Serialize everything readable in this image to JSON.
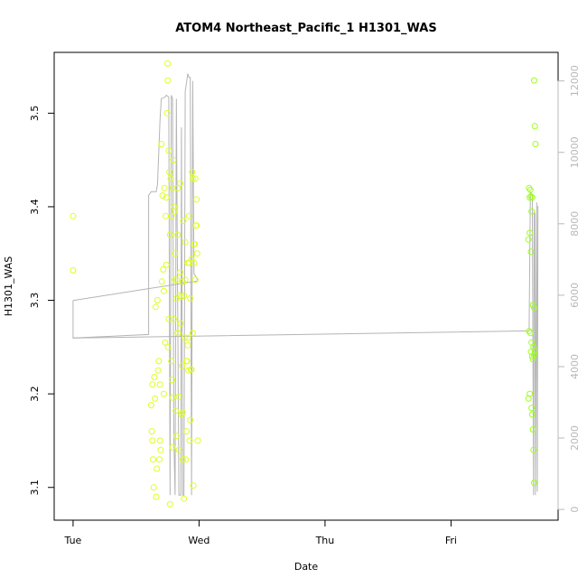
{
  "chart_data": {
    "type": "scatter",
    "title": "ATOM4 Northeast_Pacific_1 H1301_WAS",
    "xlabel": "Date",
    "ylabel": "H1301_WAS",
    "x_ticks": [
      "Tue",
      "Wed",
      "Thu",
      "Fri"
    ],
    "xlim_days": [
      -0.15,
      3.85
    ],
    "ylim": [
      3.065,
      3.565
    ],
    "y_ticks": [
      "3.1",
      "3.2",
      "3.3",
      "3.4",
      "3.5"
    ],
    "y2lim": [
      -300,
      12800
    ],
    "y2_ticks": [
      "0",
      "2000",
      "4000",
      "6000",
      "8000",
      "10000",
      "12000"
    ],
    "grid": false,
    "legend": "none",
    "colors": {
      "point_fill": "#ffffff",
      "point_yellow": "#dfff1f",
      "point_green": "#9cff1f",
      "altitude_line": "#b4b4b4"
    },
    "series": [
      {
        "axis": "left",
        "style": "points",
        "points": [
          [
            0.0,
            3.39
          ],
          [
            0.0,
            3.332
          ],
          [
            0.62,
            3.188
          ],
          [
            0.625,
            3.16
          ],
          [
            0.63,
            3.15
          ],
          [
            0.63,
            3.21
          ],
          [
            0.635,
            3.13
          ],
          [
            0.64,
            3.1
          ],
          [
            0.645,
            3.218
          ],
          [
            0.65,
            3.195
          ],
          [
            0.655,
            3.293
          ],
          [
            0.66,
            3.09
          ],
          [
            0.665,
            3.12
          ],
          [
            0.67,
            3.3
          ],
          [
            0.675,
            3.225
          ],
          [
            0.68,
            3.235
          ],
          [
            0.685,
            3.13
          ],
          [
            0.69,
            3.15
          ],
          [
            0.69,
            3.21
          ],
          [
            0.695,
            3.14
          ],
          [
            0.7,
            3.467
          ],
          [
            0.705,
            3.32
          ],
          [
            0.71,
            3.412
          ],
          [
            0.715,
            3.333
          ],
          [
            0.72,
            3.31
          ],
          [
            0.725,
            3.42
          ],
          [
            0.73,
            3.255
          ],
          [
            0.735,
            3.39
          ],
          [
            0.74,
            3.338
          ],
          [
            0.745,
            3.5
          ],
          [
            0.75,
            3.553
          ],
          [
            0.752,
            3.535
          ],
          [
            0.755,
            3.25
          ],
          [
            0.76,
            3.46
          ],
          [
            0.765,
            3.437
          ],
          [
            0.77,
            3.37
          ],
          [
            0.775,
            3.43
          ],
          [
            0.78,
            3.39
          ],
          [
            0.785,
            3.215
          ],
          [
            0.79,
            3.143
          ],
          [
            0.795,
            3.45
          ],
          [
            0.8,
            3.28
          ],
          [
            0.805,
            3.395
          ],
          [
            0.81,
            3.35
          ],
          [
            0.815,
            3.182
          ],
          [
            0.82,
            3.155
          ],
          [
            0.825,
            3.322
          ],
          [
            0.83,
            3.42
          ],
          [
            0.835,
            3.265
          ],
          [
            0.84,
            3.197
          ],
          [
            0.845,
            3.305
          ],
          [
            0.85,
            3.33
          ],
          [
            0.855,
            3.275
          ],
          [
            0.86,
            3.178
          ],
          [
            0.865,
            3.23
          ],
          [
            0.87,
            3.32
          ],
          [
            0.875,
            3.385
          ],
          [
            0.88,
            3.305
          ],
          [
            0.885,
            3.26
          ],
          [
            0.89,
            3.362
          ],
          [
            0.895,
            3.13
          ],
          [
            0.9,
            3.16
          ],
          [
            0.905,
            3.235
          ],
          [
            0.91,
            3.252
          ],
          [
            0.915,
            3.225
          ],
          [
            0.92,
            3.34
          ],
          [
            0.925,
            3.15
          ],
          [
            0.93,
            3.172
          ],
          [
            0.935,
            3.226
          ],
          [
            0.94,
            3.344
          ],
          [
            0.945,
            3.437
          ],
          [
            0.95,
            3.265
          ],
          [
            0.955,
            3.102
          ],
          [
            0.96,
            3.34
          ],
          [
            0.965,
            3.36
          ],
          [
            0.97,
            3.43
          ],
          [
            0.975,
            3.38
          ],
          [
            0.98,
            3.408
          ],
          [
            0.985,
            3.35
          ],
          [
            0.99,
            3.15
          ],
          [
            0.77,
            3.082
          ],
          [
            0.78,
            3.235
          ],
          [
            0.79,
            3.196
          ],
          [
            0.8,
            3.4
          ],
          [
            0.81,
            3.322
          ],
          [
            0.82,
            3.302
          ],
          [
            0.83,
            3.265
          ],
          [
            0.84,
            3.14
          ],
          [
            0.85,
            3.425
          ],
          [
            0.86,
            3.304
          ],
          [
            0.87,
            3.13
          ],
          [
            0.88,
            3.088
          ],
          [
            0.89,
            3.322
          ],
          [
            0.9,
            3.235
          ],
          [
            0.91,
            3.34
          ],
          [
            0.92,
            3.39
          ],
          [
            0.93,
            3.302
          ],
          [
            0.94,
            3.226
          ],
          [
            0.95,
            3.265
          ],
          [
            0.96,
            3.36
          ],
          [
            0.97,
            3.322
          ],
          [
            0.98,
            3.38
          ],
          [
            0.72,
            3.2
          ],
          [
            0.74,
            3.41
          ],
          [
            0.76,
            3.28
          ],
          [
            0.79,
            3.42
          ],
          [
            0.83,
            3.37
          ],
          [
            0.87,
            3.18
          ],
          [
            0.91,
            3.26
          ],
          [
            0.95,
            3.43
          ]
        ]
      },
      {
        "axis": "left",
        "style": "points",
        "points": [
          [
            3.66,
            3.535
          ],
          [
            3.665,
            3.486
          ],
          [
            3.67,
            3.467
          ],
          [
            3.62,
            3.42
          ],
          [
            3.625,
            3.41
          ],
          [
            3.63,
            3.418
          ],
          [
            3.635,
            3.411
          ],
          [
            3.64,
            3.395
          ],
          [
            3.645,
            3.41
          ],
          [
            3.615,
            3.365
          ],
          [
            3.625,
            3.372
          ],
          [
            3.635,
            3.352
          ],
          [
            3.65,
            3.295
          ],
          [
            3.66,
            3.292
          ],
          [
            3.62,
            3.267
          ],
          [
            3.63,
            3.265
          ],
          [
            3.635,
            3.245
          ],
          [
            3.64,
            3.255
          ],
          [
            3.645,
            3.24
          ],
          [
            3.65,
            3.237
          ],
          [
            3.655,
            3.25
          ],
          [
            3.66,
            3.242
          ],
          [
            3.615,
            3.195
          ],
          [
            3.625,
            3.2
          ],
          [
            3.64,
            3.185
          ],
          [
            3.645,
            3.178
          ],
          [
            3.65,
            3.162
          ],
          [
            3.655,
            3.14
          ],
          [
            3.66,
            3.105
          ],
          [
            3.665,
            3.246
          ]
        ]
      },
      {
        "axis": "right",
        "style": "line",
        "points": [
          [
            0.0,
            5850
          ],
          [
            0.0,
            4800
          ],
          [
            0.6,
            4900
          ],
          [
            0.6,
            5100
          ],
          [
            0.6,
            8800
          ],
          [
            0.62,
            8900
          ],
          [
            0.66,
            8900
          ],
          [
            0.67,
            9100
          ],
          [
            0.69,
            10900
          ],
          [
            0.7,
            11500
          ],
          [
            0.73,
            11550
          ],
          [
            0.74,
            11600
          ],
          [
            0.76,
            11550
          ],
          [
            0.77,
            400
          ],
          [
            0.78,
            11600
          ],
          [
            0.79,
            11500
          ],
          [
            0.8,
            2000
          ],
          [
            0.81,
            400
          ],
          [
            0.82,
            11500
          ],
          [
            0.84,
            400
          ],
          [
            0.855,
            400
          ],
          [
            0.86,
            10700
          ],
          [
            0.87,
            400
          ],
          [
            0.88,
            400
          ],
          [
            0.89,
            11700
          ],
          [
            0.91,
            12200
          ],
          [
            0.92,
            12100
          ],
          [
            0.93,
            12100
          ],
          [
            0.94,
            400
          ],
          [
            0.95,
            12000
          ],
          [
            0.96,
            6600
          ],
          [
            0.98,
            6500
          ],
          [
            0.99,
            6400
          ],
          [
            0.0,
            5850
          ]
        ]
      },
      {
        "axis": "right",
        "style": "line",
        "points": [
          [
            0.0,
            4800
          ],
          [
            3.62,
            5000
          ],
          [
            3.63,
            8900
          ],
          [
            3.645,
            8800
          ],
          [
            3.655,
            400
          ],
          [
            3.66,
            8300
          ],
          [
            3.665,
            8300
          ],
          [
            3.67,
            400
          ],
          [
            3.68,
            8600
          ],
          [
            3.685,
            500
          ],
          [
            3.69,
            8500
          ]
        ]
      }
    ]
  }
}
